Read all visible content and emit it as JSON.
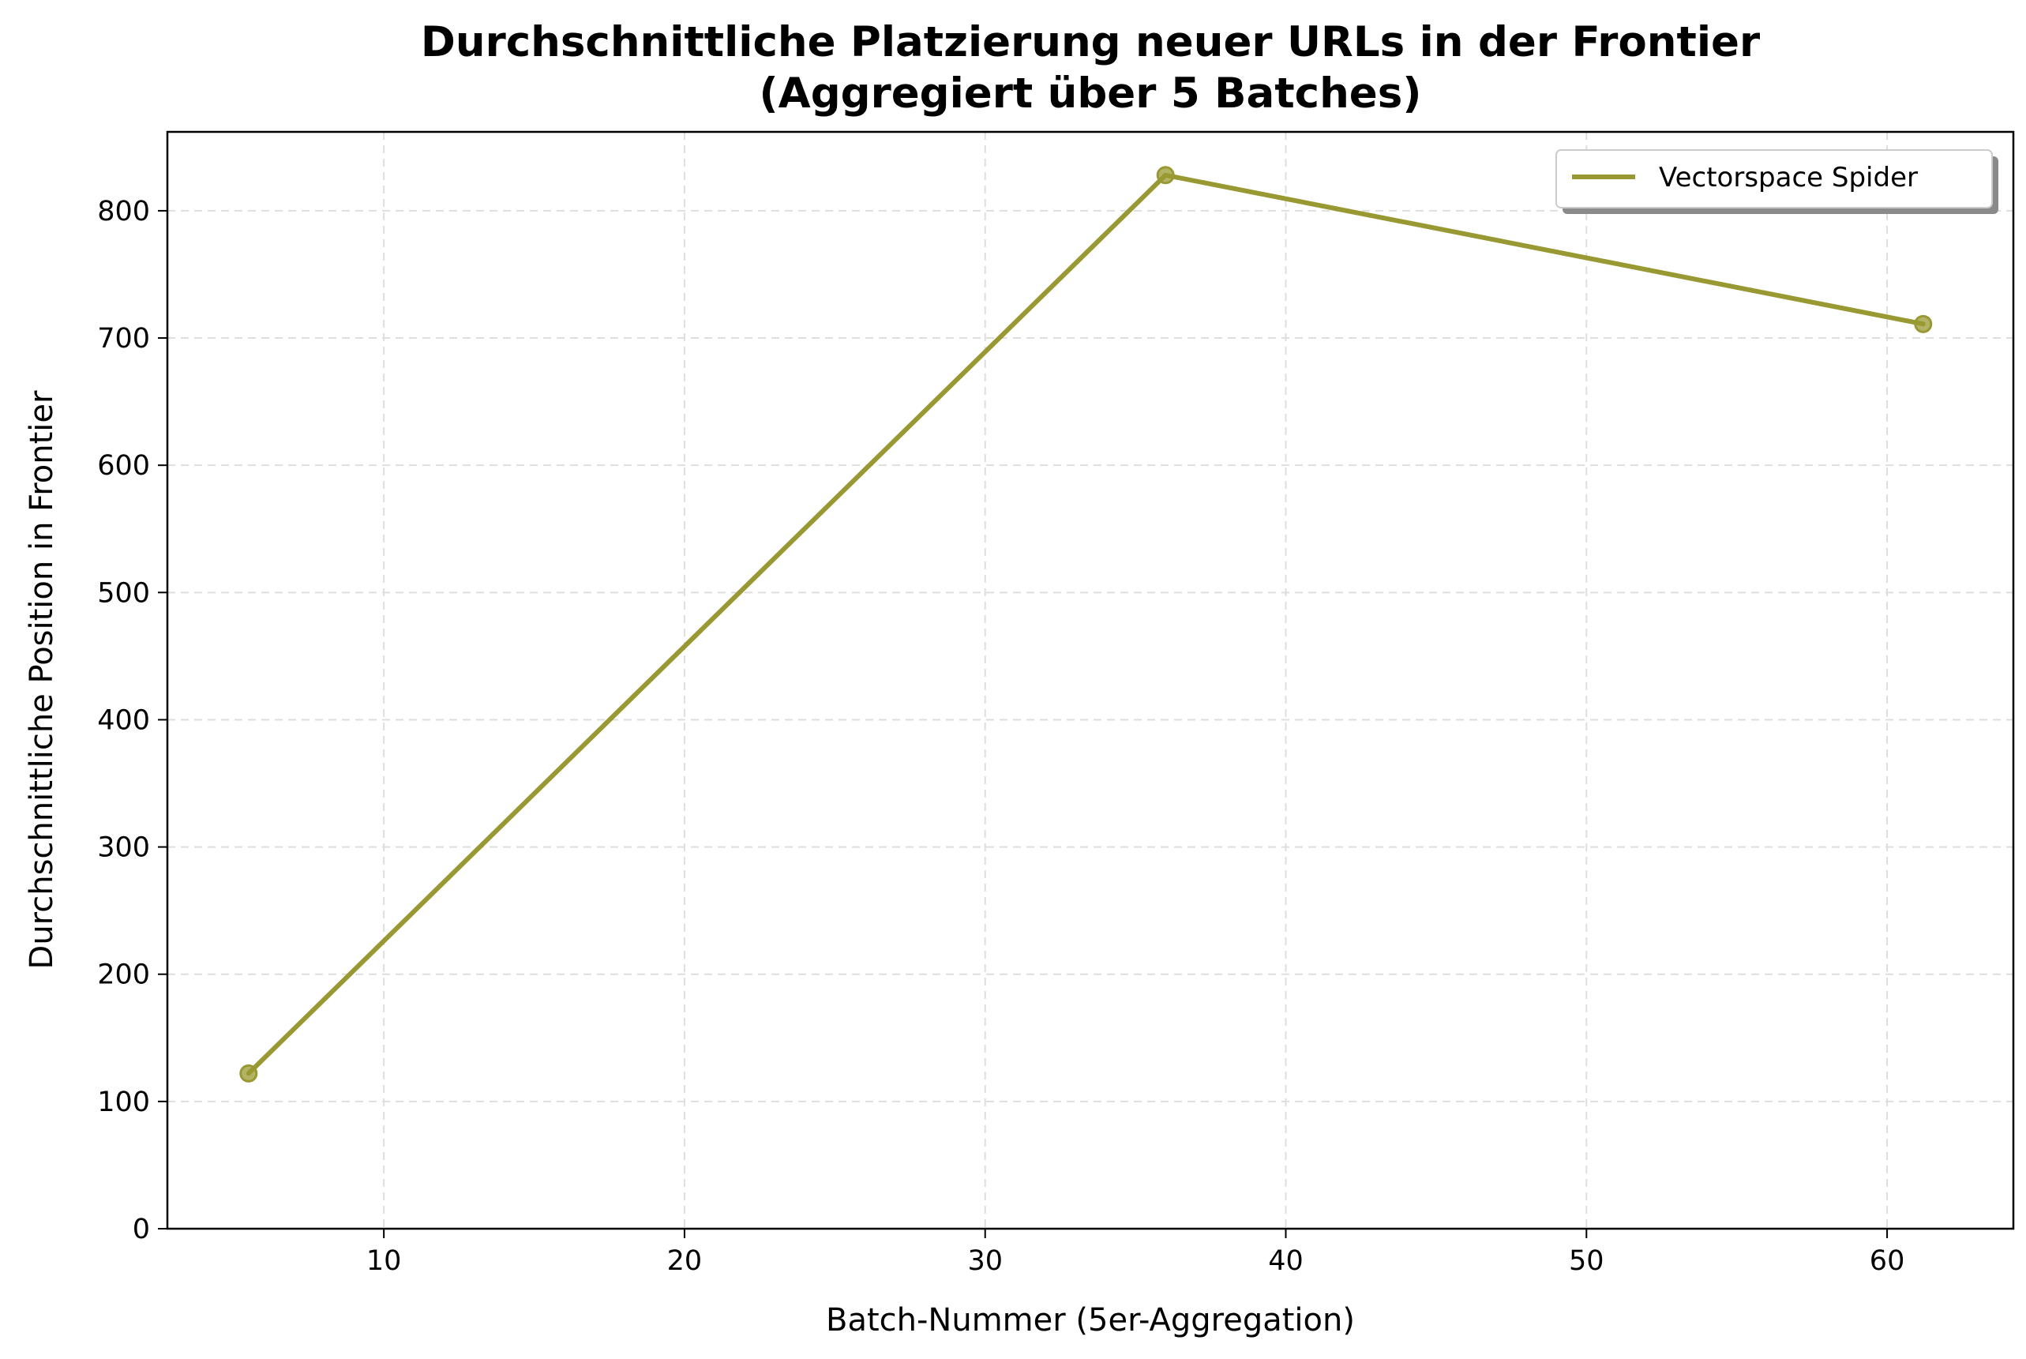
{
  "chart_data": {
    "type": "line",
    "title_line1": "Durchschnittliche Platzierung neuer URLs in der Frontier",
    "title_line2": "(Aggregiert über 5 Batches)",
    "xlabel": "Batch-Nummer (5er-Aggregation)",
    "ylabel": "Durchschnittliche Position in Frontier",
    "xlim": [
      2.8,
      64.2
    ],
    "ylim": [
      0,
      862
    ],
    "xticks": [
      10,
      20,
      30,
      40,
      50,
      60
    ],
    "yticks": [
      0,
      100,
      200,
      300,
      400,
      500,
      600,
      700,
      800
    ],
    "grid": true,
    "legend_position": "top-right",
    "series": [
      {
        "name": "Vectorspace Spider",
        "color": "#999933",
        "x": [
          5.5,
          36,
          61.2
        ],
        "y": [
          122,
          828,
          711
        ]
      }
    ]
  }
}
